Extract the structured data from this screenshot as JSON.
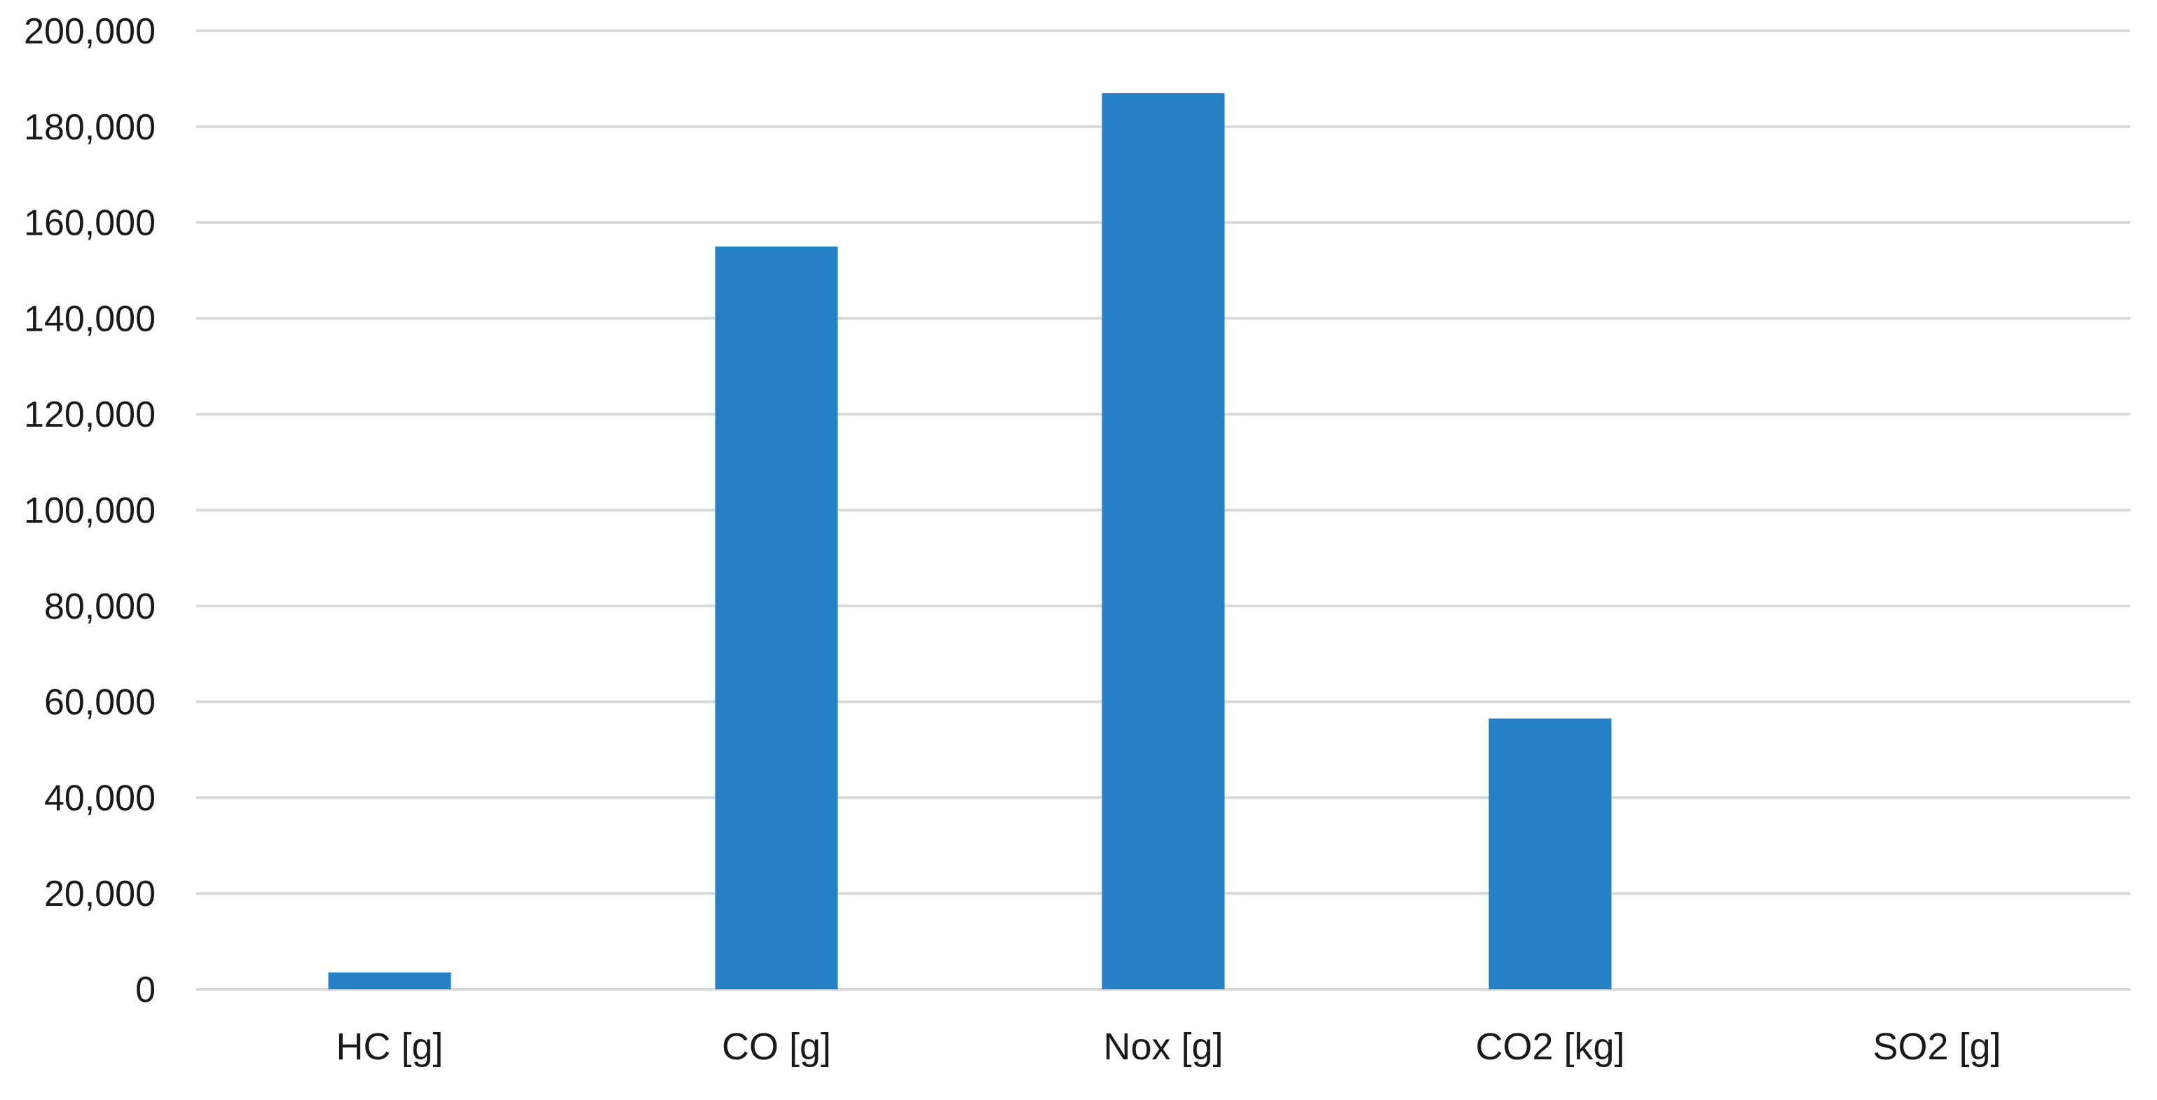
{
  "chart_data": {
    "type": "bar",
    "categories": [
      "HC [g]",
      "CO [g]",
      "Nox [g]",
      "CO2 [kg]",
      "SO2 [g]"
    ],
    "values": [
      3500,
      155000,
      187000,
      56500,
      0
    ],
    "title": "",
    "xlabel": "",
    "ylabel": "",
    "ylim": [
      0,
      200000
    ],
    "y_ticks": [
      0,
      20000,
      40000,
      60000,
      80000,
      100000,
      120000,
      140000,
      160000,
      180000,
      200000
    ],
    "y_tick_labels": [
      "0",
      "20,000",
      "40,000",
      "60,000",
      "80,000",
      "100,000",
      "120,000",
      "140,000",
      "160,000",
      "180,000",
      "200,000"
    ],
    "grid": true,
    "legend": "none",
    "colors": {
      "bar": "#2581c4",
      "grid": "#d9d9d9",
      "text": "#1a1a1a"
    }
  }
}
